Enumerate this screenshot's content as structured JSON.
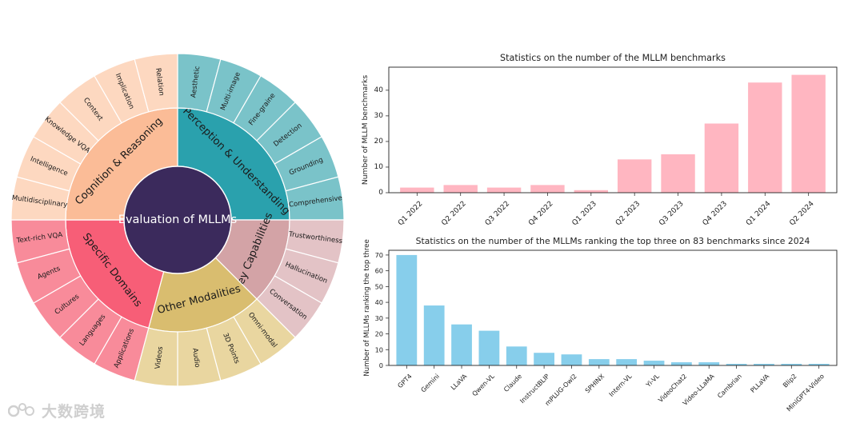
{
  "chart_data": [
    {
      "type": "sunburst",
      "center": "Evaluation of MLLMs",
      "groups": [
        {
          "name": "Perception & Understanding",
          "color": "#2aa1ad",
          "leafColor": "#7ac3c9",
          "leaves": [
            "Aesthetic",
            "Multi-image",
            "Fine-graine",
            "Detection",
            "Grounding",
            "Comprehensive"
          ]
        },
        {
          "name": "Key Capabilities",
          "color": "#d3a3a6",
          "leafColor": "#e3c3c6",
          "leaves": [
            "Trustworthiness",
            "Hallucination",
            "Conversation"
          ]
        },
        {
          "name": "Other Modalities",
          "color": "#d9bd6f",
          "leafColor": "#e9d6a0",
          "leaves": [
            "Omni-modal",
            "3D Points",
            "Audio",
            "Videos"
          ]
        },
        {
          "name": "Specific Domains",
          "color": "#f75e77",
          "leafColor": "#f88b9a",
          "leaves": [
            "Applications",
            "Languages",
            "Cultures",
            "Agents",
            "Text-rich VQA"
          ]
        },
        {
          "name": "Cognition & Reasoning",
          "color": "#fbbc97",
          "leafColor": "#fdd8c0",
          "leaves": [
            "Multidisciplinary",
            "Intelligence",
            "Knowledge VQA",
            "Context",
            "Implication",
            "Relation"
          ]
        }
      ]
    },
    {
      "type": "bar",
      "title": "Statistics on the number of the MLLM benchmarks",
      "ylabel": "Number of MLLM benchmarks",
      "xlabel": "",
      "categories": [
        "Q1 2022",
        "Q2 2022",
        "Q3 2022",
        "Q4 2022",
        "Q1 2023",
        "Q2 2023",
        "Q3 2023",
        "Q4 2023",
        "Q1 2024",
        "Q2 2024"
      ],
      "values": [
        2,
        3,
        2,
        3,
        1,
        13,
        15,
        27,
        43,
        46
      ],
      "ylim": [
        0,
        49
      ],
      "yticks": [
        0,
        10,
        20,
        30,
        40
      ],
      "color": "#ffb6c1"
    },
    {
      "type": "bar",
      "title": "Statistics on the number of the MLLMs ranking the top three on 83 benchmarks since 2024",
      "ylabel": "Number of MLLMs ranking the top three",
      "xlabel": "",
      "categories": [
        "GPT4",
        "Gemini",
        "LLaVA",
        "Qwen-VL",
        "Claude",
        "InstructBLIP",
        "mPLUG-Owl2",
        "SPHINX",
        "Intern-VL",
        "Yi-VL",
        "VideoChat2",
        "Video-LLaMA",
        "Cambrian",
        "PLLaVA",
        "Blip2",
        "MiniGPT4-Video"
      ],
      "values": [
        70,
        38,
        26,
        22,
        12,
        8,
        7,
        4,
        4,
        3,
        2,
        2,
        1,
        1,
        1,
        1
      ],
      "ylim": [
        0,
        73
      ],
      "yticks": [
        0,
        10,
        20,
        30,
        40,
        50,
        60,
        70
      ],
      "color": "#87ceeb"
    }
  ],
  "watermark": {
    "text": "大数跨境"
  }
}
